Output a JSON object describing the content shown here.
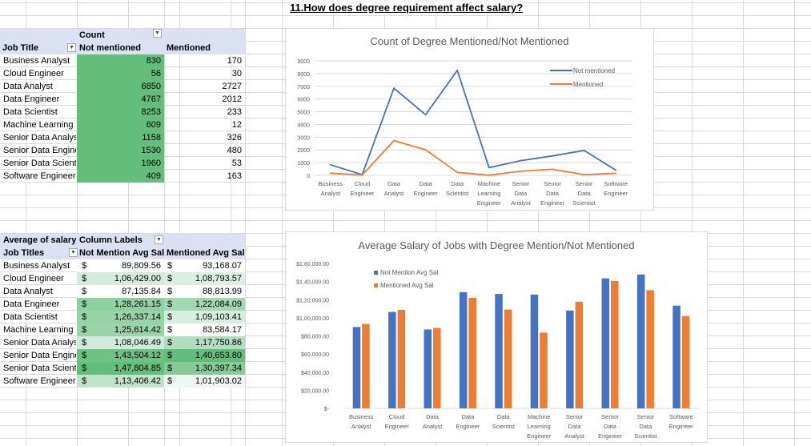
{
  "title": "11.How does degree requirement affect salary?",
  "pivot1": {
    "header_top": "Count",
    "col_job": "Job Title",
    "col_not": "Not mentioned",
    "col_mentioned": "Mentioned",
    "rows": [
      {
        "job": "Business Analyst",
        "not": "830",
        "mentioned": "170"
      },
      {
        "job": "Cloud Engineer",
        "not": "56",
        "mentioned": "30"
      },
      {
        "job": "Data Analyst",
        "not": "6850",
        "mentioned": "2727"
      },
      {
        "job": "Data Engineer",
        "not": "4767",
        "mentioned": "2012"
      },
      {
        "job": "Data Scientist",
        "not": "8253",
        "mentioned": "233"
      },
      {
        "job": "Machine Learning Engineer",
        "not": "609",
        "mentioned": "12"
      },
      {
        "job": "Senior Data Analyst",
        "not": "1158",
        "mentioned": "326"
      },
      {
        "job": "Senior Data Engineer",
        "not": "1530",
        "mentioned": "480"
      },
      {
        "job": "Senior Data Scientist",
        "not": "1960",
        "mentioned": "53"
      },
      {
        "job": "Software Engineer",
        "not": "409",
        "mentioned": "163"
      }
    ],
    "fill_color": "#63be7b"
  },
  "pivot2": {
    "header_top_left": "Average of salary_",
    "header_top_right": "Column Labels",
    "col_job": "Job Titles",
    "col_not": "Not Mention Avg Sal",
    "col_mentioned": "Mentioned Avg Sal",
    "currency": "$",
    "rows": [
      {
        "job": "Business Analyst",
        "not": "89,809.56",
        "mentioned": "93,168.07",
        "c1": "#ffffff",
        "c2": "#ffffff"
      },
      {
        "job": "Cloud Engineer",
        "not": "1,06,429.00",
        "mentioned": "1,08,793.57",
        "c1": "#d3ecda",
        "c2": "#d9efdf"
      },
      {
        "job": "Data Analyst",
        "not": "87,135.84",
        "mentioned": "88,813.99",
        "c1": "#ffffff",
        "c2": "#ffffff"
      },
      {
        "job": "Data Engineer",
        "not": "1,28,261.15",
        "mentioned": "1,22,084.09",
        "c1": "#8ed09f",
        "c2": "#a2d8b0"
      },
      {
        "job": "Data Scientist",
        "not": "1,26,337.14",
        "mentioned": "1,09,103.41",
        "c1": "#96d3a6",
        "c2": "#d6eedd"
      },
      {
        "job": "Machine Learning Engineer",
        "not": "1,25,614.42",
        "mentioned": "83,584.17",
        "c1": "#98d4a7",
        "c2": "#ffffff"
      },
      {
        "job": "Senior Data Analyst",
        "not": "1,08,046.49",
        "mentioned": "1,17,750.86",
        "c1": "#cfeada",
        "c2": "#b2dec0"
      },
      {
        "job": "Senior Data Engineer",
        "not": "1,43,504.12",
        "mentioned": "1,40,653.80",
        "c1": "#6ec283",
        "c2": "#63be7b"
      },
      {
        "job": "Senior Data Scientist",
        "not": "1,47,804.85",
        "mentioned": "1,30,397.34",
        "c1": "#63be7b",
        "c2": "#84cb96"
      },
      {
        "job": "Software Engineer",
        "not": "1,13,406.42",
        "mentioned": "1,01,903.02",
        "c1": "#c0e4c9",
        "c2": "#eef8f1"
      }
    ]
  },
  "chart_data": [
    {
      "type": "line",
      "title": "Count of Degree Mentioned/Not Mentioned",
      "categories": [
        "Business Analyst",
        "Cloud Engineer",
        "Data Analyst",
        "Data Engineer",
        "Data Scientist",
        "Machine Learning Engineer",
        "Senior Data Analyst",
        "Senior Data Engineer",
        "Senior Data Scientist",
        "Software Engineer"
      ],
      "category_lines": [
        [
          "Business",
          "Analyst"
        ],
        [
          "Cloud",
          "Engineer"
        ],
        [
          "Data",
          "Analyst"
        ],
        [
          "Data",
          "Engineer"
        ],
        [
          "Data",
          "Scientist"
        ],
        [
          "Machine",
          "Learning",
          "Engineer"
        ],
        [
          "Senior",
          "Data",
          "Analyst"
        ],
        [
          "Senior",
          "Data",
          "Engineer"
        ],
        [
          "Senior",
          "Data",
          "Scientist"
        ],
        [
          "Software",
          "Engineer"
        ]
      ],
      "series": [
        {
          "name": "Not mentioned",
          "color": "#4472c4",
          "values": [
            830,
            56,
            6850,
            4767,
            8253,
            609,
            1158,
            1530,
            1960,
            409
          ]
        },
        {
          "name": "Mentioned",
          "color": "#ed7d31",
          "values": [
            170,
            30,
            2727,
            2012,
            233,
            12,
            326,
            480,
            53,
            163
          ]
        }
      ],
      "ylim": [
        0,
        9000
      ],
      "yticks": [
        0,
        1000,
        2000,
        3000,
        4000,
        5000,
        6000,
        7000,
        8000,
        9000
      ],
      "ytick_labels": [
        "0",
        "1000",
        "2000",
        "3000",
        "4000",
        "5000",
        "6000",
        "7000",
        "8000",
        "9000"
      ],
      "grid": true,
      "legend": "top-right"
    },
    {
      "type": "bar",
      "title": "Average Salary of Jobs with Degree Mention/Not Mentioned",
      "categories": [
        "Business Analyst",
        "Cloud Engineer",
        "Data Analyst",
        "Data Engineer",
        "Data Scientist",
        "Machine Learning Engineer",
        "Senior Data Analyst",
        "Senior Data Engineer",
        "Senior Data Scientist",
        "Software Engineer"
      ],
      "category_lines": [
        [
          "Business",
          "Analyst"
        ],
        [
          "Cloud",
          "Engineer"
        ],
        [
          "Data",
          "Analyst"
        ],
        [
          "Data",
          "Engineer"
        ],
        [
          "Data",
          "Scientist"
        ],
        [
          "Machine",
          "Learning",
          "Engineer"
        ],
        [
          "Senior",
          "Data",
          "Analyst"
        ],
        [
          "Senior",
          "Data",
          "Engineer"
        ],
        [
          "Senior",
          "Data",
          "Scientist"
        ],
        [
          "Software",
          "Engineer"
        ]
      ],
      "series": [
        {
          "name": "Not Mention Avg Sal",
          "color": "#4472c4",
          "values": [
            89809.56,
            106429.0,
            87135.84,
            128261.15,
            126337.14,
            125614.42,
            108046.49,
            143504.12,
            147804.85,
            113406.42
          ]
        },
        {
          "name": "Mentioned Avg Sal",
          "color": "#ed7d31",
          "values": [
            93168.07,
            108793.57,
            88813.99,
            122084.09,
            109103.41,
            83584.17,
            117750.86,
            140653.8,
            130397.34,
            101903.02
          ]
        }
      ],
      "ylim": [
        0,
        160000
      ],
      "yticks": [
        0,
        20000,
        40000,
        60000,
        80000,
        100000,
        120000,
        140000,
        160000
      ],
      "ytick_labels": [
        "$-",
        "$20,000.00",
        "$40,000.00",
        "$60,000.00",
        "$80,000.00",
        "$1,00,000.00",
        "$1,20,000.00",
        "$1,40,000.00",
        "$1,60,000.00"
      ],
      "grid": false,
      "legend": "top-left"
    }
  ]
}
